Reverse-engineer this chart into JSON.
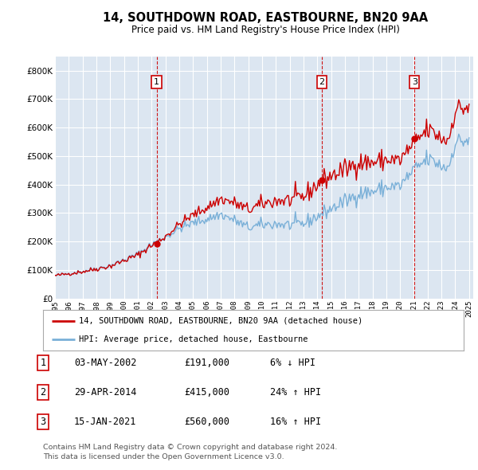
{
  "title": "14, SOUTHDOWN ROAD, EASTBOURNE, BN20 9AA",
  "subtitle": "Price paid vs. HM Land Registry's House Price Index (HPI)",
  "legend_line1": "14, SOUTHDOWN ROAD, EASTBOURNE, BN20 9AA (detached house)",
  "legend_line2": "HPI: Average price, detached house, Eastbourne",
  "footer1": "Contains HM Land Registry data © Crown copyright and database right 2024.",
  "footer2": "This data is licensed under the Open Government Licence v3.0.",
  "transactions": [
    {
      "num": 1,
      "date": "03-MAY-2002",
      "price": 191000,
      "pct": "6%",
      "dir": "↓"
    },
    {
      "num": 2,
      "date": "29-APR-2014",
      "price": 415000,
      "pct": "24%",
      "dir": "↑"
    },
    {
      "num": 3,
      "date": "15-JAN-2021",
      "price": 560000,
      "pct": "16%",
      "dir": "↑"
    }
  ],
  "transaction_years": [
    2002.37,
    2014.33,
    2021.04
  ],
  "transaction_prices": [
    191000,
    415000,
    560000
  ],
  "ylim": [
    0,
    850000
  ],
  "yticks": [
    0,
    100000,
    200000,
    300000,
    400000,
    500000,
    600000,
    700000,
    800000
  ],
  "plot_bg": "#dce6f1",
  "grid_color": "#ffffff",
  "hpi_color": "#7ab0d8",
  "price_color": "#cc0000",
  "box_color": "#cc0000"
}
